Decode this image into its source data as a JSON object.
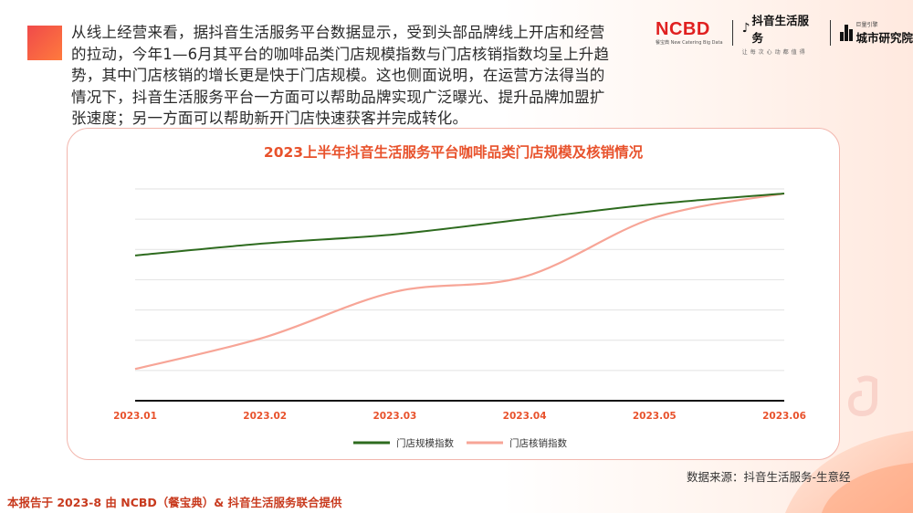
{
  "intro_text": "从线上经营来看，据抖音生活服务平台数据显示，受到头部品牌线上开店和经营的拉动，今年1—6月其平台的咖啡品类门店规模指数与门店核销指数均呈上升趋势，其中门店核销的增长更是快于门店规模。这也侧面说明，在运营方法得当的情况下，抖音生活服务平台一方面可以帮助品牌实现广泛曝光、提升品牌加盟扩张速度；另一方面可以帮助新开门店快速获客并完成转化。",
  "logos": {
    "ncbd": "NCBD",
    "ncbd_sub": "餐宝典  New Catering Big Data",
    "douyin": "抖音生活服务",
    "douyin_slogan": "让每次心动都值得",
    "institute_small": "巨量引擎",
    "institute": "城市研究院"
  },
  "chart_data": {
    "type": "line",
    "title": "2023上半年抖音生活服务平台咖啡品类门店规模及核销情况",
    "categories": [
      "2023.01",
      "2023.02",
      "2023.03",
      "2023.04",
      "2023.05",
      "2023.06"
    ],
    "ylim": [
      0,
      7
    ],
    "grid": true,
    "legend_position": "bottom",
    "series": [
      {
        "name": "门店规模指数",
        "color": "#2e6b1f",
        "values": [
          4.8,
          5.2,
          5.5,
          6.0,
          6.5,
          6.85
        ]
      },
      {
        "name": "门店核销指数",
        "color": "#f7a597",
        "values": [
          1.05,
          2.1,
          3.6,
          4.1,
          6.05,
          6.85
        ]
      }
    ]
  },
  "source": "数据来源：抖音生活服务-生意经",
  "footer": "本报告于 2023-8 由 NCBD（餐宝典）& 抖音生活服务联合提供"
}
